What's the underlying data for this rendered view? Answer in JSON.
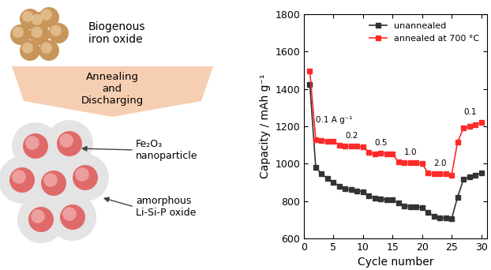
{
  "diagram": {
    "top_label": "Biogenous\niron oxide",
    "arrow_label": "Annealing\nand\nDischarging",
    "particle_label": "Fe₂O₃\nnanoparticle",
    "matrix_label": "amorphous\nLi-Si-P oxide"
  },
  "chart_data": {
    "type": "line",
    "x_label": "Cycle number",
    "y_label": "Capacity / mAh g⁻¹",
    "x": [
      1,
      2,
      3,
      4,
      5,
      6,
      7,
      8,
      9,
      10,
      11,
      12,
      13,
      14,
      15,
      16,
      17,
      18,
      19,
      20,
      21,
      22,
      23,
      24,
      25,
      26,
      27,
      28,
      29,
      30
    ],
    "series": [
      {
        "name": "unannealed",
        "color": "#333333",
        "marker": "square",
        "line_style": "solid",
        "values": [
          1425,
          980,
          945,
          920,
          900,
          880,
          865,
          860,
          855,
          850,
          830,
          815,
          810,
          808,
          805,
          790,
          775,
          770,
          768,
          765,
          740,
          720,
          710,
          708,
          705,
          820,
          915,
          930,
          940,
          950
        ]
      },
      {
        "name": "annealed at 700 °C",
        "color": "#ff2a2a",
        "marker": "square",
        "line_style": "solid",
        "values": [
          1495,
          1130,
          1125,
          1120,
          1120,
          1100,
          1095,
          1095,
          1095,
          1090,
          1060,
          1050,
          1055,
          1050,
          1050,
          1010,
          1005,
          1005,
          1005,
          1000,
          950,
          945,
          945,
          945,
          940,
          1115,
          1190,
          1200,
          1210,
          1220
        ]
      }
    ],
    "annotations": [
      "0.1 A g⁻¹",
      "0.2",
      "0.5",
      "1.0",
      "2.0",
      "0.1"
    ],
    "xlim": [
      0,
      31
    ],
    "xticks": [
      0,
      5,
      10,
      15,
      20,
      25,
      30
    ],
    "ylim": [
      600,
      1800
    ],
    "yticks": [
      600,
      800,
      1000,
      1200,
      1400,
      1600,
      1800
    ],
    "legend": "upper right",
    "grid": false
  }
}
